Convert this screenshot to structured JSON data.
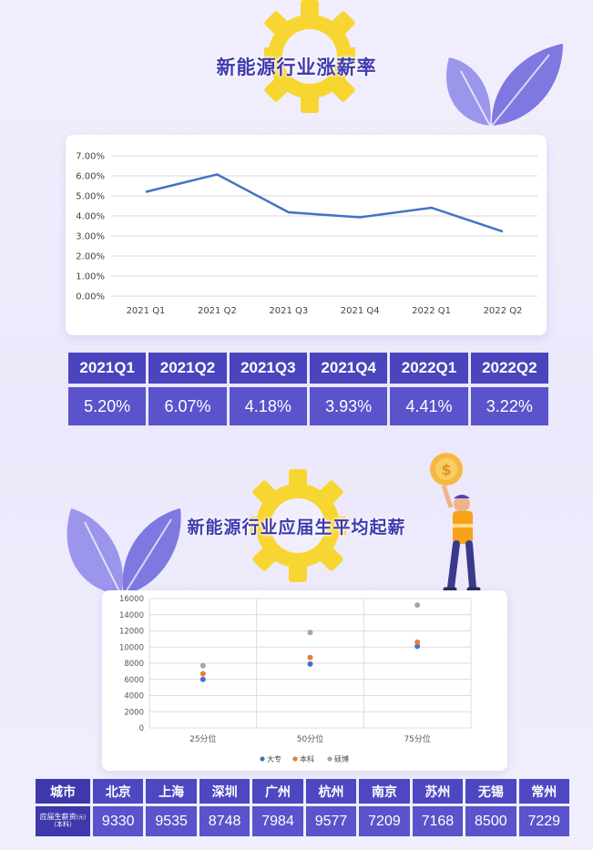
{
  "section1": {
    "title": "新能源行业涨薪率"
  },
  "section2": {
    "title": "新能源行业应届生平均起薪"
  },
  "colors": {
    "accent": "#4a44bd",
    "line": "#4472c4",
    "gear": "#f7d631",
    "leaf": "#8a83e3",
    "dazhuan": "#4472c4",
    "benke": "#ed7d31",
    "shuobo": "#a5a5a5"
  },
  "icons": [
    "gear-icon",
    "leaf-icon",
    "coin-icon",
    "worker-illustration"
  ],
  "chart_data": [
    {
      "type": "line",
      "categories": [
        "2021 Q1",
        "2021 Q2",
        "2021 Q3",
        "2021 Q4",
        "2022 Q1",
        "2022 Q2"
      ],
      "series": [
        {
          "values": [
            5.2,
            6.07,
            4.18,
            3.93,
            4.41,
            3.22
          ]
        }
      ],
      "ylim": [
        0,
        7
      ],
      "yticks": [
        "0.00%",
        "1.00%",
        "2.00%",
        "3.00%",
        "4.00%",
        "5.00%",
        "6.00%",
        "7.00%"
      ],
      "grid": true
    },
    {
      "type": "scatter",
      "categories": [
        "25分位",
        "50分位",
        "75分位"
      ],
      "series": [
        {
          "name": "大专",
          "values": [
            6000,
            7900,
            10100
          ]
        },
        {
          "name": "本科",
          "values": [
            6700,
            8700,
            10600
          ]
        },
        {
          "name": "硕博",
          "values": [
            7700,
            11800,
            15200
          ]
        }
      ],
      "ylim": [
        0,
        16000
      ],
      "yticks": [
        "0",
        "2000",
        "4000",
        "6000",
        "8000",
        "10000",
        "12000",
        "14000",
        "16000"
      ],
      "legend": "bottom",
      "grid": true
    }
  ],
  "rate_table": {
    "headers": [
      "2021Q1",
      "2021Q2",
      "2021Q3",
      "2021Q4",
      "2022Q1",
      "2022Q2"
    ],
    "values": [
      "5.20%",
      "6.07%",
      "4.18%",
      "3.93%",
      "4.41%",
      "3.22%"
    ]
  },
  "city_table": {
    "row_header": "城市",
    "row_label": "应届生薪资",
    "row_label_unit": "(元)",
    "row_label_sub": "（本科）",
    "cities": [
      "北京",
      "上海",
      "深圳",
      "广州",
      "杭州",
      "南京",
      "苏州",
      "无锡",
      "常州"
    ],
    "salaries": [
      "9330",
      "9535",
      "8748",
      "7984",
      "9577",
      "7209",
      "7168",
      "8500",
      "7229"
    ]
  }
}
